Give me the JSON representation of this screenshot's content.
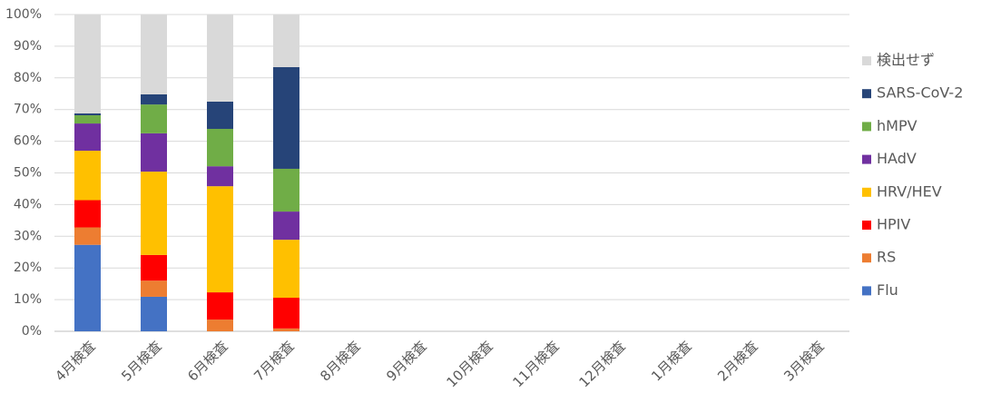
{
  "chart_data": {
    "type": "stacked_bar",
    "categories": [
      "4月検査",
      "5月検査",
      "6月検査",
      "7月検査",
      "8月検査",
      "9月検査",
      "10月検査",
      "11月検査",
      "12月検査",
      "1月検査",
      "2月検査",
      "3月検査"
    ],
    "series": [
      {
        "name": "Flu",
        "color": "#4472c4",
        "values": [
          27.3,
          10.9,
          0,
          0,
          null,
          null,
          null,
          null,
          null,
          null,
          null,
          null
        ]
      },
      {
        "name": "RS",
        "color": "#ed7d31",
        "values": [
          5.5,
          5.1,
          3.7,
          0.9,
          null,
          null,
          null,
          null,
          null,
          null,
          null,
          null
        ]
      },
      {
        "name": "HPIV",
        "color": "#ff0000",
        "values": [
          8.6,
          8.1,
          8.6,
          9.7,
          null,
          null,
          null,
          null,
          null,
          null,
          null,
          null
        ]
      },
      {
        "name": "HRV/HEV",
        "color": "#ffc000",
        "values": [
          15.6,
          26.3,
          33.5,
          18.3,
          null,
          null,
          null,
          null,
          null,
          null,
          null,
          null
        ]
      },
      {
        "name": "HAdV",
        "color": "#7030a0",
        "values": [
          8.6,
          12.1,
          6.3,
          8.9,
          null,
          null,
          null,
          null,
          null,
          null,
          null,
          null
        ]
      },
      {
        "name": "hMPV",
        "color": "#70ad47",
        "values": [
          2.6,
          9.1,
          11.8,
          13.5,
          null,
          null,
          null,
          null,
          null,
          null,
          null,
          null
        ]
      },
      {
        "name": "SARS-CoV-2",
        "color": "#264478",
        "values": [
          0.6,
          3.2,
          8.6,
          32.1,
          null,
          null,
          null,
          null,
          null,
          null,
          null,
          null
        ]
      },
      {
        "name": "検出せず",
        "color": "#d9d9d9",
        "values": [
          31.2,
          25.2,
          27.5,
          16.6,
          null,
          null,
          null,
          null,
          null,
          null,
          null,
          null
        ]
      }
    ],
    "ylim": [
      0,
      100
    ],
    "yticks": [
      {
        "value": 0,
        "label": "0%"
      },
      {
        "value": 10,
        "label": "10%"
      },
      {
        "value": 20,
        "label": "20%"
      },
      {
        "value": 30,
        "label": "30%"
      },
      {
        "value": 40,
        "label": "40%"
      },
      {
        "value": 50,
        "label": "50%"
      },
      {
        "value": 60,
        "label": "60%"
      },
      {
        "value": 70,
        "label": "70%"
      },
      {
        "value": 80,
        "label": "80%"
      },
      {
        "value": 90,
        "label": "90%"
      },
      {
        "value": 100,
        "label": "100%"
      }
    ],
    "grid": true,
    "legend": "right"
  }
}
